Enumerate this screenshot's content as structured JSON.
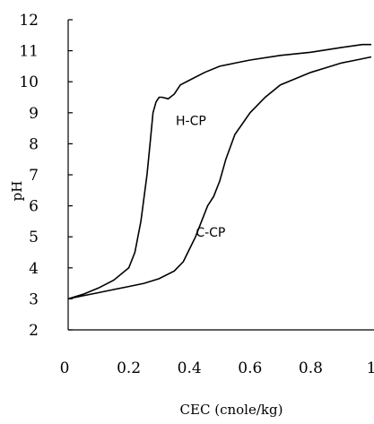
{
  "chart_data": {
    "type": "line",
    "title": "",
    "xlabel": "CEC (cnole/kg)",
    "ylabel": "pH",
    "xlim": [
      0,
      1
    ],
    "ylim": [
      2,
      12
    ],
    "xticks": [
      0,
      0.2,
      0.4,
      0.6,
      0.8,
      1
    ],
    "xtick_labels": [
      "0",
      "0.2",
      "0.4",
      "0.6",
      "0.8",
      "1"
    ],
    "yticks": [
      2,
      3,
      4,
      5,
      6,
      7,
      8,
      9,
      10,
      11,
      12
    ],
    "ytick_labels": [
      "2",
      "3",
      "4",
      "5",
      "6",
      "7",
      "8",
      "9",
      "10",
      "11",
      "12"
    ],
    "grid": false,
    "series": [
      {
        "name": "H-CP",
        "label_text": "H-CP",
        "label_at": [
          0.405,
          8.6
        ],
        "x": [
          0.0,
          0.05,
          0.1,
          0.15,
          0.2,
          0.22,
          0.24,
          0.26,
          0.27,
          0.28,
          0.29,
          0.3,
          0.31,
          0.33,
          0.35,
          0.37,
          0.4,
          0.45,
          0.5,
          0.55,
          0.6,
          0.7,
          0.8,
          0.9,
          0.97,
          1.0
        ],
        "values": [
          3.0,
          3.15,
          3.35,
          3.6,
          4.0,
          4.5,
          5.5,
          7.0,
          8.0,
          9.0,
          9.35,
          9.5,
          9.5,
          9.45,
          9.6,
          9.9,
          10.05,
          10.3,
          10.5,
          10.6,
          10.7,
          10.85,
          10.95,
          11.1,
          11.2,
          11.2
        ]
      },
      {
        "name": "C-CP",
        "label_text": "C-CP",
        "label_at": [
          0.47,
          5.0
        ],
        "x": [
          0.0,
          0.05,
          0.1,
          0.15,
          0.2,
          0.25,
          0.3,
          0.35,
          0.38,
          0.4,
          0.42,
          0.44,
          0.46,
          0.48,
          0.5,
          0.52,
          0.55,
          0.6,
          0.65,
          0.7,
          0.75,
          0.8,
          0.85,
          0.9,
          0.95,
          1.0
        ],
        "values": [
          3.0,
          3.1,
          3.2,
          3.3,
          3.4,
          3.5,
          3.65,
          3.9,
          4.2,
          4.6,
          5.0,
          5.5,
          6.0,
          6.3,
          6.8,
          7.5,
          8.3,
          9.0,
          9.5,
          9.9,
          10.1,
          10.3,
          10.45,
          10.6,
          10.7,
          10.8
        ]
      }
    ]
  }
}
